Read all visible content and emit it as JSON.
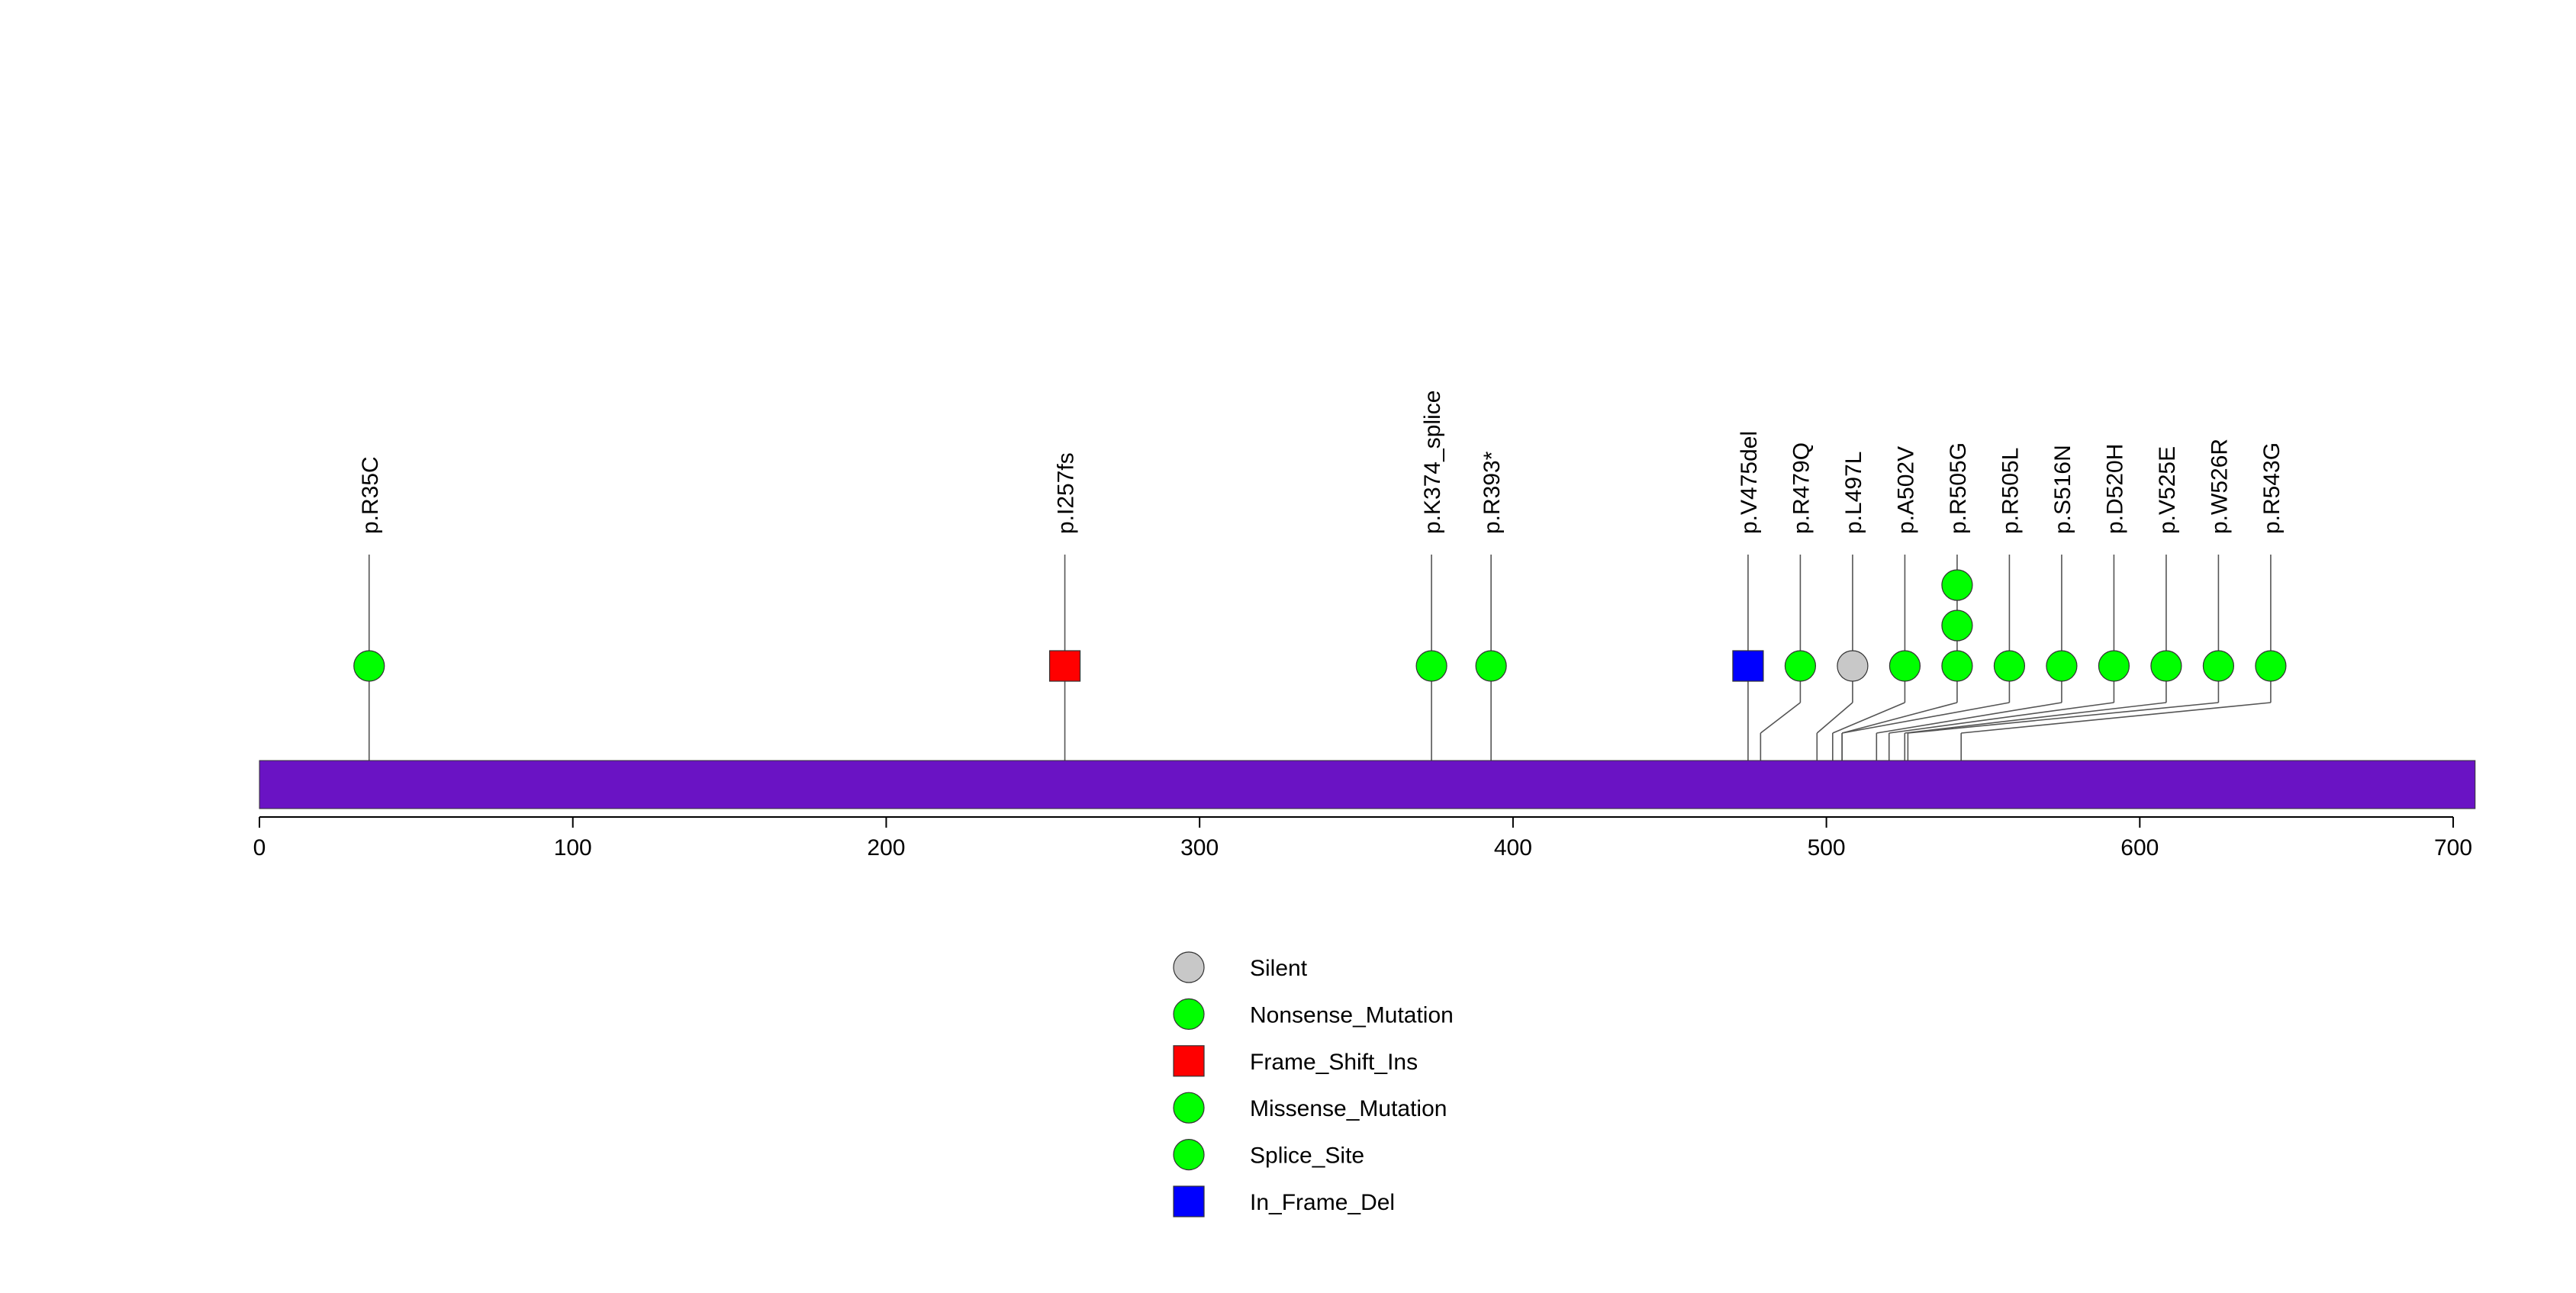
{
  "chart_data": {
    "type": "lollipop",
    "title": "",
    "xlabel": "",
    "ylabel": "",
    "xlim": [
      0,
      707
    ],
    "x_ticks": [
      0,
      100,
      200,
      300,
      400,
      500,
      600,
      700
    ],
    "x_tick_labels": [
      "0",
      "100",
      "200",
      "300",
      "400",
      "500",
      "600",
      "700"
    ],
    "protein_bar_color": "#6A13C4",
    "mutations": [
      {
        "label": "p.R35C",
        "position": 35,
        "type": "Missense_Mutation",
        "count": 1
      },
      {
        "label": "p.I257fs",
        "position": 257,
        "type": "Frame_Shift_Ins",
        "count": 1
      },
      {
        "label": "p.K374_splice",
        "position": 374,
        "type": "Splice_Site",
        "count": 1
      },
      {
        "label": "p.R393*",
        "position": 393,
        "type": "Nonsense_Mutation",
        "count": 1
      },
      {
        "label": "p.V475del",
        "position": 475,
        "type": "In_Frame_Del",
        "count": 1
      },
      {
        "label": "p.R479Q",
        "position": 479,
        "type": "Missense_Mutation",
        "count": 1
      },
      {
        "label": "p.L497L",
        "position": 497,
        "type": "Silent",
        "count": 1
      },
      {
        "label": "p.A502V",
        "position": 502,
        "type": "Missense_Mutation",
        "count": 1
      },
      {
        "label": "p.R505G",
        "position": 505,
        "type": "Missense_Mutation",
        "count": 3
      },
      {
        "label": "p.R505L",
        "position": 505,
        "type": "Missense_Mutation",
        "count": 1
      },
      {
        "label": "p.S516N",
        "position": 516,
        "type": "Missense_Mutation",
        "count": 1
      },
      {
        "label": "p.D520H",
        "position": 520,
        "type": "Missense_Mutation",
        "count": 1
      },
      {
        "label": "p.V525E",
        "position": 525,
        "type": "Missense_Mutation",
        "count": 1
      },
      {
        "label": "p.W526R",
        "position": 526,
        "type": "Missense_Mutation",
        "count": 1
      },
      {
        "label": "p.R543G",
        "position": 543,
        "type": "Missense_Mutation",
        "count": 1
      }
    ],
    "legend": [
      {
        "label": "Silent",
        "shape": "circle",
        "color": "#C8C8C8"
      },
      {
        "label": "Nonsense_Mutation",
        "shape": "circle",
        "color": "#00FF00"
      },
      {
        "label": "Frame_Shift_Ins",
        "shape": "square",
        "color": "#FF0000"
      },
      {
        "label": "Missense_Mutation",
        "shape": "circle",
        "color": "#00FF00"
      },
      {
        "label": "Splice_Site",
        "shape": "circle",
        "color": "#00FF00"
      },
      {
        "label": "In_Frame_Del",
        "shape": "square",
        "color": "#0000FF"
      }
    ]
  }
}
